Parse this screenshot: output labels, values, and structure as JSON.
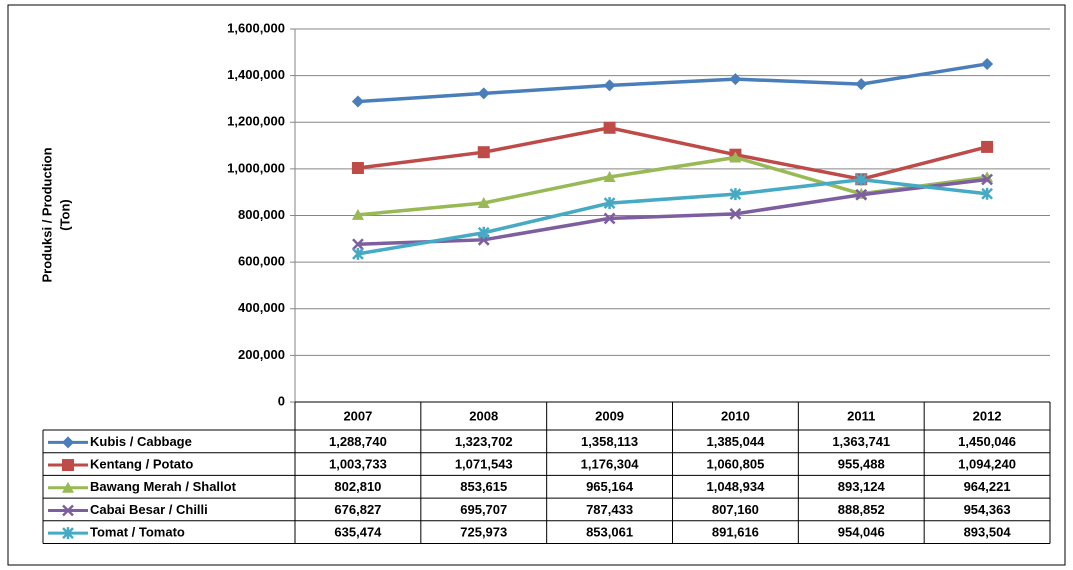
{
  "chart_data": {
    "type": "line",
    "y_label": [
      "Produksi / Production",
      "(Ton)"
    ],
    "categories": [
      "2007",
      "2008",
      "2009",
      "2010",
      "2011",
      "2012"
    ],
    "ylim": [
      0,
      1600000
    ],
    "yticks": [
      0,
      {
        "value": 200000,
        "label": "200,000"
      },
      {
        "value": 400000,
        "label": "400,000"
      },
      {
        "value": 600000,
        "label": "600,000"
      },
      {
        "value": 800000,
        "label": "800,000"
      },
      {
        "value": 1000000,
        "label": "1,000,000"
      },
      {
        "value": 1200000,
        "label": "1,200,000"
      },
      {
        "value": 1400000,
        "label": "1,400,000"
      },
      {
        "value": 1600000,
        "label": "1,600,000"
      }
    ],
    "grid": true,
    "series": [
      {
        "name": "Kubis / Cabbage",
        "color": "#4a7ebb",
        "marker": "diamond",
        "values": [
          1288740,
          1323702,
          1358113,
          1385044,
          1363741,
          1450046
        ],
        "value_labels": [
          "1,288,740",
          "1,323,702",
          "1,358,113",
          "1,385,044",
          "1,363,741",
          "1,450,046"
        ]
      },
      {
        "name": "Kentang / Potato",
        "color": "#be4b48",
        "marker": "square",
        "values": [
          1003733,
          1071543,
          1176304,
          1060805,
          955488,
          1094240
        ],
        "value_labels": [
          "1,003,733",
          "1,071,543",
          "1,176,304",
          "1,060,805",
          "955,488",
          "1,094,240"
        ]
      },
      {
        "name": "Bawang Merah / Shallot",
        "color": "#98b954",
        "marker": "triangle",
        "values": [
          802810,
          853615,
          965164,
          1048934,
          893124,
          964221
        ],
        "value_labels": [
          "802,810",
          "853,615",
          "965,164",
          "1,048,934",
          "893,124",
          "964,221"
        ]
      },
      {
        "name": "Cabai Besar / Chilli",
        "color": "#7d5fa0",
        "marker": "x",
        "values": [
          676827,
          695707,
          787433,
          807160,
          888852,
          954363
        ],
        "value_labels": [
          "676,827",
          "695,707",
          "787,433",
          "807,160",
          "888,852",
          "954,363"
        ]
      },
      {
        "name": "Tomat / Tomato",
        "color": "#46aac5",
        "marker": "star",
        "values": [
          635474,
          725973,
          853061,
          891616,
          954046,
          893504
        ],
        "value_labels": [
          "635,474",
          "725,973",
          "853,061",
          "891,616",
          "954,046",
          "893,504"
        ]
      }
    ]
  }
}
